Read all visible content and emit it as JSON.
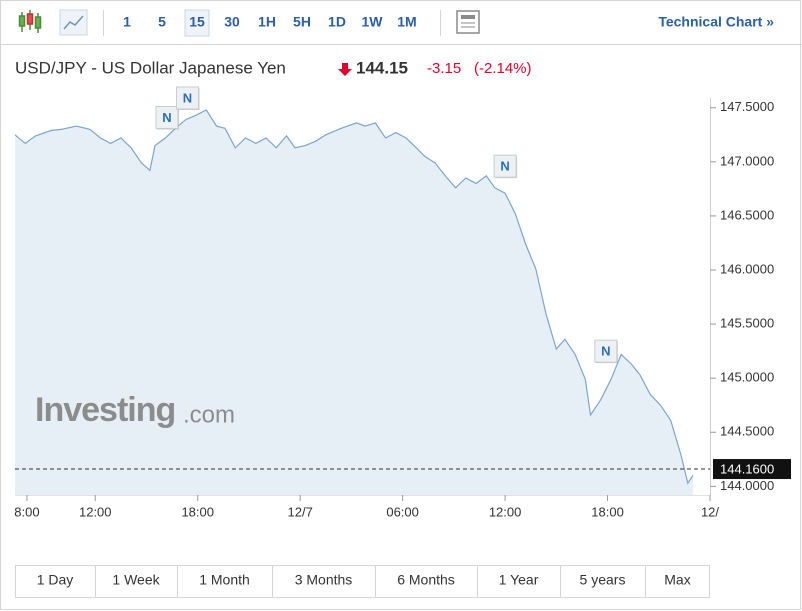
{
  "toolbar": {
    "intervals": [
      "1",
      "5",
      "15",
      "30",
      "1H",
      "5H",
      "1D",
      "1W",
      "1M"
    ],
    "selected_interval": 2,
    "link": "Technical Chart »"
  },
  "header": {
    "title": "USD/JPY - US Dollar Japanese Yen",
    "price": "144.15",
    "change": "-3.15",
    "change_percent": "(-2.14%)"
  },
  "watermark": {
    "brand": "Investing",
    "suffix": ".com"
  },
  "ranges": [
    "1 Day",
    "1 Week",
    "1 Month",
    "3 Months",
    "6 Months",
    "1 Year",
    "5 years",
    "Max"
  ],
  "chart_data": {
    "type": "line",
    "x": [
      7.3,
      7.9,
      8.5,
      9.4,
      10.0,
      10.9,
      11.7,
      12.3,
      12.9,
      13.5,
      14.1,
      14.7,
      15.2,
      15.5,
      16.1,
      16.7,
      17.3,
      17.9,
      18.5,
      19.1,
      19.6,
      20.2,
      20.8,
      21.4,
      22.0,
      22.6,
      23.2,
      23.7,
      24.3,
      24.9,
      25.5,
      26.4,
      27.3,
      27.8,
      28.4,
      29.0,
      29.6,
      30.2,
      30.8,
      31.3,
      31.9,
      32.5,
      33.1,
      33.7,
      34.3,
      34.9,
      35.4,
      36.0,
      36.6,
      37.2,
      37.8,
      38.4,
      39.0,
      39.5,
      40.1,
      40.7,
      41.0,
      41.6,
      42.2,
      42.8,
      43.4,
      43.9,
      44.5,
      45.1,
      45.7,
      46.3,
      46.7,
      47.0
    ],
    "series": [
      {
        "name": "USD/JPY",
        "color": "#7ba6cf",
        "fill": "#e6eef6",
        "values": [
          147.25,
          147.17,
          147.24,
          147.29,
          147.3,
          147.33,
          147.3,
          147.22,
          147.17,
          147.22,
          147.13,
          146.99,
          146.92,
          147.15,
          147.22,
          147.31,
          147.39,
          147.43,
          147.48,
          147.33,
          147.31,
          147.13,
          147.22,
          147.17,
          147.22,
          147.13,
          147.24,
          147.13,
          147.15,
          147.19,
          147.25,
          147.31,
          147.36,
          147.33,
          147.36,
          147.22,
          147.27,
          147.22,
          147.13,
          147.05,
          146.99,
          146.87,
          146.76,
          146.85,
          146.8,
          146.87,
          146.76,
          146.71,
          146.52,
          146.24,
          146.01,
          145.59,
          145.27,
          145.36,
          145.22,
          144.99,
          144.66,
          144.8,
          144.99,
          145.22,
          145.13,
          145.03,
          144.85,
          144.75,
          144.61,
          144.29,
          144.03,
          144.1
        ]
      }
    ],
    "xlim": [
      7.3,
      48.0
    ],
    "xticks": [
      {
        "value": 8,
        "label": "8:00"
      },
      {
        "value": 12,
        "label": "12:00"
      },
      {
        "value": 18,
        "label": "18:00"
      },
      {
        "value": 24,
        "label": "12/7"
      },
      {
        "value": 30,
        "label": "06:00"
      },
      {
        "value": 36,
        "label": "12:00"
      },
      {
        "value": 42,
        "label": "18:00"
      },
      {
        "value": 48,
        "label": "12/"
      }
    ],
    "ylim": [
      143.92,
      147.59
    ],
    "yticks": [
      {
        "value": 144,
        "label": "144.0000"
      },
      {
        "value": 144.5,
        "label": "144.5000"
      },
      {
        "value": 145,
        "label": "145.0000"
      },
      {
        "value": 145.5,
        "label": "145.5000"
      },
      {
        "value": 146,
        "label": "146.0000"
      },
      {
        "value": 146.5,
        "label": "146.5000"
      },
      {
        "value": 147,
        "label": "147.0000"
      },
      {
        "value": 147.5,
        "label": "147.5000"
      }
    ],
    "current_price": {
      "value": 144.16,
      "label": "144.1600"
    },
    "annotations": [
      {
        "label": "N",
        "x": 16.2,
        "y": 147.41
      },
      {
        "label": "N",
        "x": 17.4,
        "y": 147.59
      },
      {
        "label": "N",
        "x": 36.0,
        "y": 146.96
      },
      {
        "label": "N",
        "x": 41.9,
        "y": 145.25
      }
    ]
  }
}
